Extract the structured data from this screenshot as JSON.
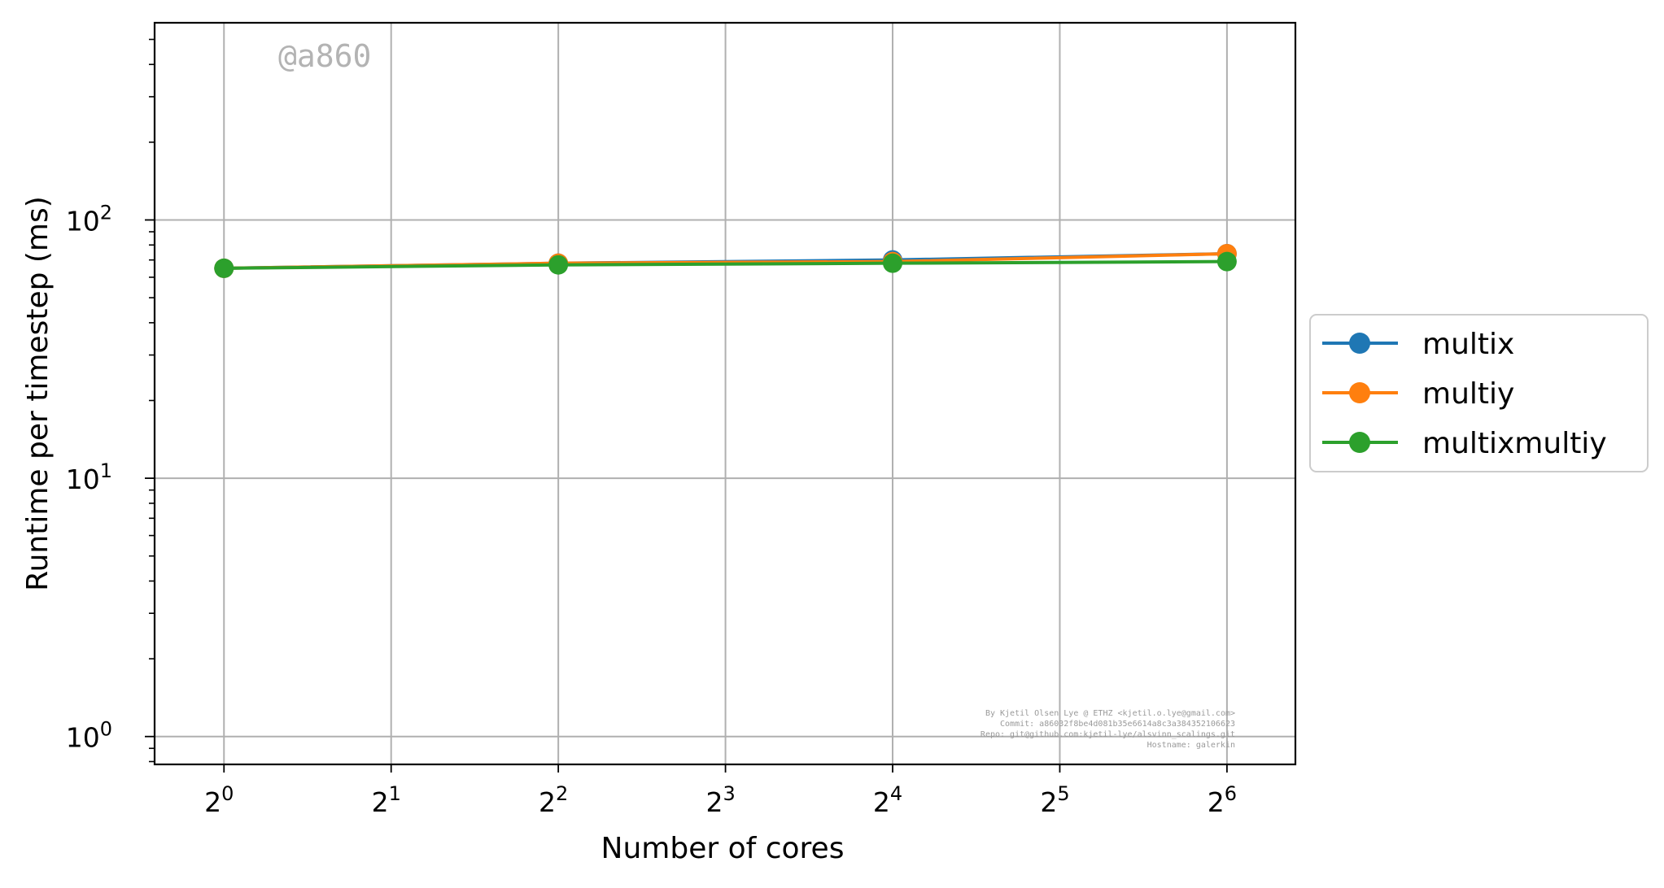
{
  "chart_data": {
    "type": "line",
    "xlabel": "Number of cores",
    "ylabel": "Runtime per timestep (ms)",
    "x_scale": "log2",
    "y_scale": "log10",
    "x": [
      1,
      4,
      16,
      64
    ],
    "xlim": [
      0.75,
      85
    ],
    "ylim": [
      0.78,
      580
    ],
    "x_ticks": [
      {
        "base": "2",
        "exp": "0",
        "value": 1
      },
      {
        "base": "2",
        "exp": "1",
        "value": 2
      },
      {
        "base": "2",
        "exp": "2",
        "value": 4
      },
      {
        "base": "2",
        "exp": "3",
        "value": 8
      },
      {
        "base": "2",
        "exp": "4",
        "value": 16
      },
      {
        "base": "2",
        "exp": "5",
        "value": 32
      },
      {
        "base": "2",
        "exp": "6",
        "value": 64
      }
    ],
    "y_ticks": [
      {
        "base": "10",
        "exp": "0",
        "value": 1
      },
      {
        "base": "10",
        "exp": "1",
        "value": 10
      },
      {
        "base": "10",
        "exp": "2",
        "value": 100
      }
    ],
    "grid": true,
    "legend_position": "outside right",
    "series": [
      {
        "name": "multix",
        "color": "#1f77b4",
        "values": [
          65,
          68,
          70,
          74
        ]
      },
      {
        "name": "multiy",
        "color": "#ff7f0e",
        "values": [
          65,
          68,
          69,
          74
        ]
      },
      {
        "name": "multixmultiy",
        "color": "#2ca02c",
        "values": [
          65,
          67,
          68,
          69
        ]
      }
    ],
    "annotations": {
      "watermark": "@a860",
      "credit_lines": [
        "By Kjetil Olsen Lye @ ETHZ <kjetil.o.lye@gmail.com>",
        "Commit: a86032f8be4d081b35e6614a8c3a384352106623",
        "Repo: git@github.com:kjetil-lye/alsvinn_scalings.git",
        "Hostname: galerkin"
      ]
    }
  }
}
